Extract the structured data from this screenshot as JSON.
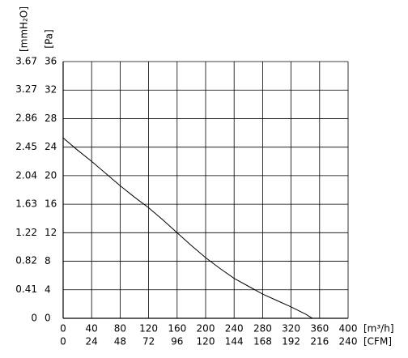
{
  "chart_data": {
    "type": "line",
    "xlabel": "[m³/h]",
    "x2label": "[CFM]",
    "ylabel": "[Pa]",
    "y2label": "[mmH₂O]",
    "x": [
      0,
      20,
      40,
      60,
      80,
      100,
      120,
      140,
      160,
      180,
      200,
      220,
      240,
      260,
      280,
      300,
      320,
      340,
      350
    ],
    "series": [
      {
        "color": "#000000",
        "values": [
          25.3,
          23.6,
          22.0,
          20.3,
          18.6,
          17.0,
          15.5,
          13.8,
          12.0,
          10.2,
          8.5,
          7.0,
          5.6,
          4.5,
          3.4,
          2.5,
          1.6,
          0.6,
          0
        ]
      }
    ],
    "xlim": [
      0,
      400
    ],
    "xticks": [
      0,
      40,
      80,
      120,
      160,
      200,
      240,
      280,
      320,
      360,
      400
    ],
    "x2lim": [
      0,
      240
    ],
    "x2ticks": [
      0,
      24,
      48,
      72,
      96,
      120,
      144,
      168,
      192,
      216,
      240
    ],
    "ylim": [
      0,
      36
    ],
    "yticks": [
      0,
      4,
      8,
      12,
      16,
      20,
      24,
      28,
      32,
      36
    ],
    "y2lim": [
      0,
      3.67
    ],
    "y2ticks": [
      0,
      0.41,
      0.82,
      1.22,
      1.63,
      2.04,
      2.45,
      2.86,
      3.27,
      3.67
    ],
    "grid": true
  }
}
